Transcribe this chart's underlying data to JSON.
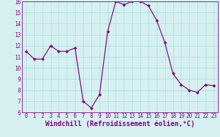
{
  "x": [
    0,
    1,
    2,
    3,
    4,
    5,
    6,
    7,
    8,
    9,
    10,
    11,
    12,
    13,
    14,
    15,
    16,
    17,
    18,
    19,
    20,
    21,
    22,
    23
  ],
  "y": [
    11.5,
    10.8,
    10.8,
    12.0,
    11.5,
    11.5,
    11.8,
    7.0,
    6.4,
    7.6,
    13.3,
    16.0,
    15.7,
    16.0,
    16.0,
    15.6,
    14.3,
    12.3,
    9.5,
    8.5,
    8.0,
    7.8,
    8.5,
    8.4
  ],
  "line_color": "#800080",
  "marker": "D",
  "marker_size": 2.2,
  "bg_color": "#d6f0f0",
  "grid_color": "#aadddd",
  "xlabel": "Windchill (Refroidissement éolien,°C)",
  "xlabel_color": "#800080",
  "tick_color": "#800080",
  "ylim": [
    6,
    16
  ],
  "xlim": [
    -0.5,
    23.5
  ],
  "yticks": [
    6,
    7,
    8,
    9,
    10,
    11,
    12,
    13,
    14,
    15,
    16
  ],
  "xticks": [
    0,
    1,
    2,
    3,
    4,
    5,
    6,
    7,
    8,
    9,
    10,
    11,
    12,
    13,
    14,
    15,
    16,
    17,
    18,
    19,
    20,
    21,
    22,
    23
  ],
  "tick_fontsize": 5.5,
  "xlabel_fontsize": 7.0,
  "linewidth": 0.9
}
